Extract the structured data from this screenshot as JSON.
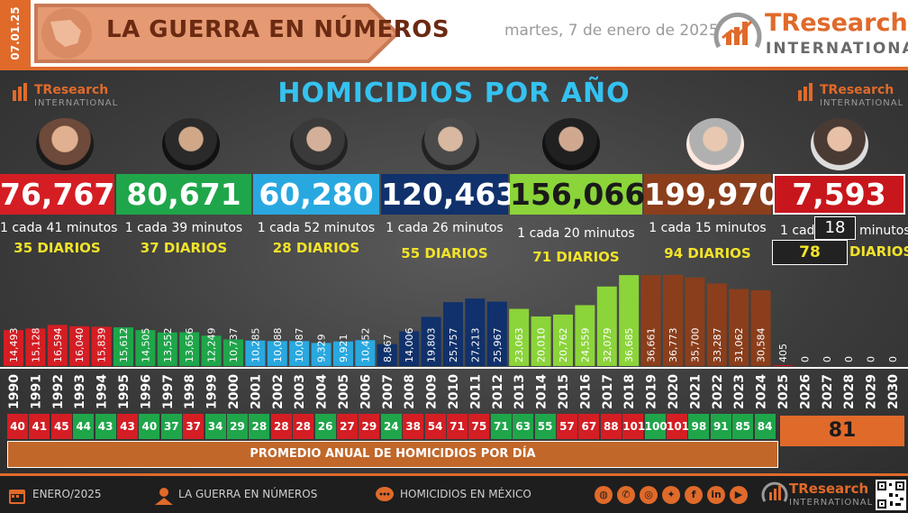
{
  "header": {
    "date_code": "07.01.25",
    "banner_title": "LA GUERRA EN NÚMEROS",
    "pub_date": "martes, 7 de enero de 2025",
    "logo_name_a": "TResearch",
    "logo_name_b": "INTERNATIONAL"
  },
  "title": "HOMICIDIOS POR AÑO",
  "colors": {
    "accent": "#e06a2a",
    "title": "#35c2f0",
    "daily_text": "#f2e32a"
  },
  "presidents": [
    {
      "total": "76,767",
      "rate": "1 cada 41 minutos",
      "daily": "35 DIARIOS",
      "color": "#d41e24"
    },
    {
      "total": "80,671",
      "rate": "1 cada 39 minutos",
      "daily": "37 DIARIOS",
      "color": "#1fa64a"
    },
    {
      "total": "60,280",
      "rate": "1 cada 52 minutos",
      "daily": "28 DIARIOS",
      "color": "#29a8e0"
    },
    {
      "total": "120,463",
      "rate": "1 cada 26 minutos",
      "daily": "55 DIARIOS",
      "color": "#10316b"
    },
    {
      "total": "156,066",
      "rate": "1 cada 20 minutos",
      "daily": "71 DIARIOS",
      "color": "#8bd43a"
    },
    {
      "total": "199,970",
      "rate": "1 cada 15 minutos",
      "daily": "94 DIARIOS",
      "color": "#8a3e1c"
    },
    {
      "total": "7,593",
      "rate_a": "1 cada",
      "rate_num": "18",
      "rate_b": "minutos",
      "daily_num": "78",
      "daily_word": "DIARIOS",
      "color": "#c8161d"
    }
  ],
  "chart_data": {
    "type": "bar",
    "categories": [
      "1990",
      "1991",
      "1992",
      "1993",
      "1994",
      "1995",
      "1996",
      "1997",
      "1998",
      "1999",
      "2000",
      "2001",
      "2002",
      "2003",
      "2004",
      "2005",
      "2006",
      "2007",
      "2008",
      "2009",
      "2010",
      "2011",
      "2012",
      "2013",
      "2014",
      "2015",
      "2016",
      "2017",
      "2018",
      "2019",
      "2020",
      "2021",
      "2022",
      "2023",
      "2024",
      "2025",
      "2026",
      "2027",
      "2028",
      "2029",
      "2030"
    ],
    "values": [
      14493,
      15128,
      16594,
      16040,
      15839,
      15612,
      14505,
      13552,
      13656,
      12249,
      10737,
      10285,
      10088,
      10087,
      9329,
      9921,
      10452,
      8867,
      14006,
      19803,
      25757,
      27213,
      25967,
      23063,
      20010,
      20762,
      24559,
      32079,
      36685,
      36661,
      36773,
      35700,
      33287,
      31062,
      30584,
      405,
      0,
      0,
      0,
      0,
      0
    ],
    "labels": [
      "14,493",
      "15,128",
      "16,594",
      "16,040",
      "15,839",
      "15,612",
      "14,505",
      "13,552",
      "13,656",
      "12,249",
      "10,737",
      "10,285",
      "10,088",
      "10,087",
      "9,329",
      "9,921",
      "10,452",
      "8,867",
      "14,006",
      "19,803",
      "25,757",
      "27,213",
      "25,967",
      "23,063",
      "20,010",
      "20,762",
      "24,559",
      "32,079",
      "36,685",
      "36,661",
      "36,773",
      "35,700",
      "33,287",
      "31,062",
      "30,584",
      "405",
      "0",
      "0",
      "0",
      "0",
      "0"
    ],
    "colors": [
      "#d41e24",
      "#d41e24",
      "#d41e24",
      "#d41e24",
      "#d41e24",
      "#1fa64a",
      "#1fa64a",
      "#1fa64a",
      "#1fa64a",
      "#1fa64a",
      "#1fa64a",
      "#29a8e0",
      "#29a8e0",
      "#29a8e0",
      "#29a8e0",
      "#29a8e0",
      "#29a8e0",
      "#10316b",
      "#10316b",
      "#10316b",
      "#10316b",
      "#10316b",
      "#10316b",
      "#8bd43a",
      "#8bd43a",
      "#8bd43a",
      "#8bd43a",
      "#8bd43a",
      "#8bd43a",
      "#8a3e1c",
      "#8a3e1c",
      "#8a3e1c",
      "#8a3e1c",
      "#8a3e1c",
      "#8a3e1c",
      "#c8161d",
      "#c8161d",
      "#c8161d",
      "#c8161d",
      "#c8161d",
      "#c8161d"
    ],
    "ylim": [
      0,
      40000
    ]
  },
  "daily_avg": {
    "values": [
      "40",
      "41",
      "45",
      "44",
      "43",
      "43",
      "40",
      "37",
      "37",
      "34",
      "29",
      "28",
      "28",
      "28",
      "26",
      "27",
      "29",
      "24",
      "38",
      "54",
      "71",
      "75",
      "71",
      "63",
      "55",
      "57",
      "67",
      "88",
      "101",
      "100",
      "101",
      "98",
      "91",
      "85",
      "84"
    ],
    "colors": [
      "#d41e24",
      "#d41e24",
      "#d41e24",
      "#1fa64a",
      "#1fa64a",
      "#d41e24",
      "#1fa64a",
      "#1fa64a",
      "#d41e24",
      "#1fa64a",
      "#1fa64a",
      "#1fa64a",
      "#d41e24",
      "#d41e24",
      "#1fa64a",
      "#d41e24",
      "#d41e24",
      "#1fa64a",
      "#d41e24",
      "#d41e24",
      "#d41e24",
      "#d41e24",
      "#1fa64a",
      "#1fa64a",
      "#1fa64a",
      "#d41e24",
      "#d41e24",
      "#d41e24",
      "#d41e24",
      "#1fa64a",
      "#d41e24",
      "#1fa64a",
      "#1fa64a",
      "#1fa64a",
      "#1fa64a"
    ],
    "current": "81",
    "label": "PROMEDIO ANUAL DE HOMICIDIOS POR DÍA"
  },
  "footer": {
    "date": "ENERO/2025",
    "series": "LA GUERRA EN NÚMEROS",
    "topic": "HOMICIDIOS EN MÉXICO",
    "social": [
      "www",
      "tel",
      "ig",
      "tw",
      "fb",
      "in",
      "yt"
    ]
  }
}
